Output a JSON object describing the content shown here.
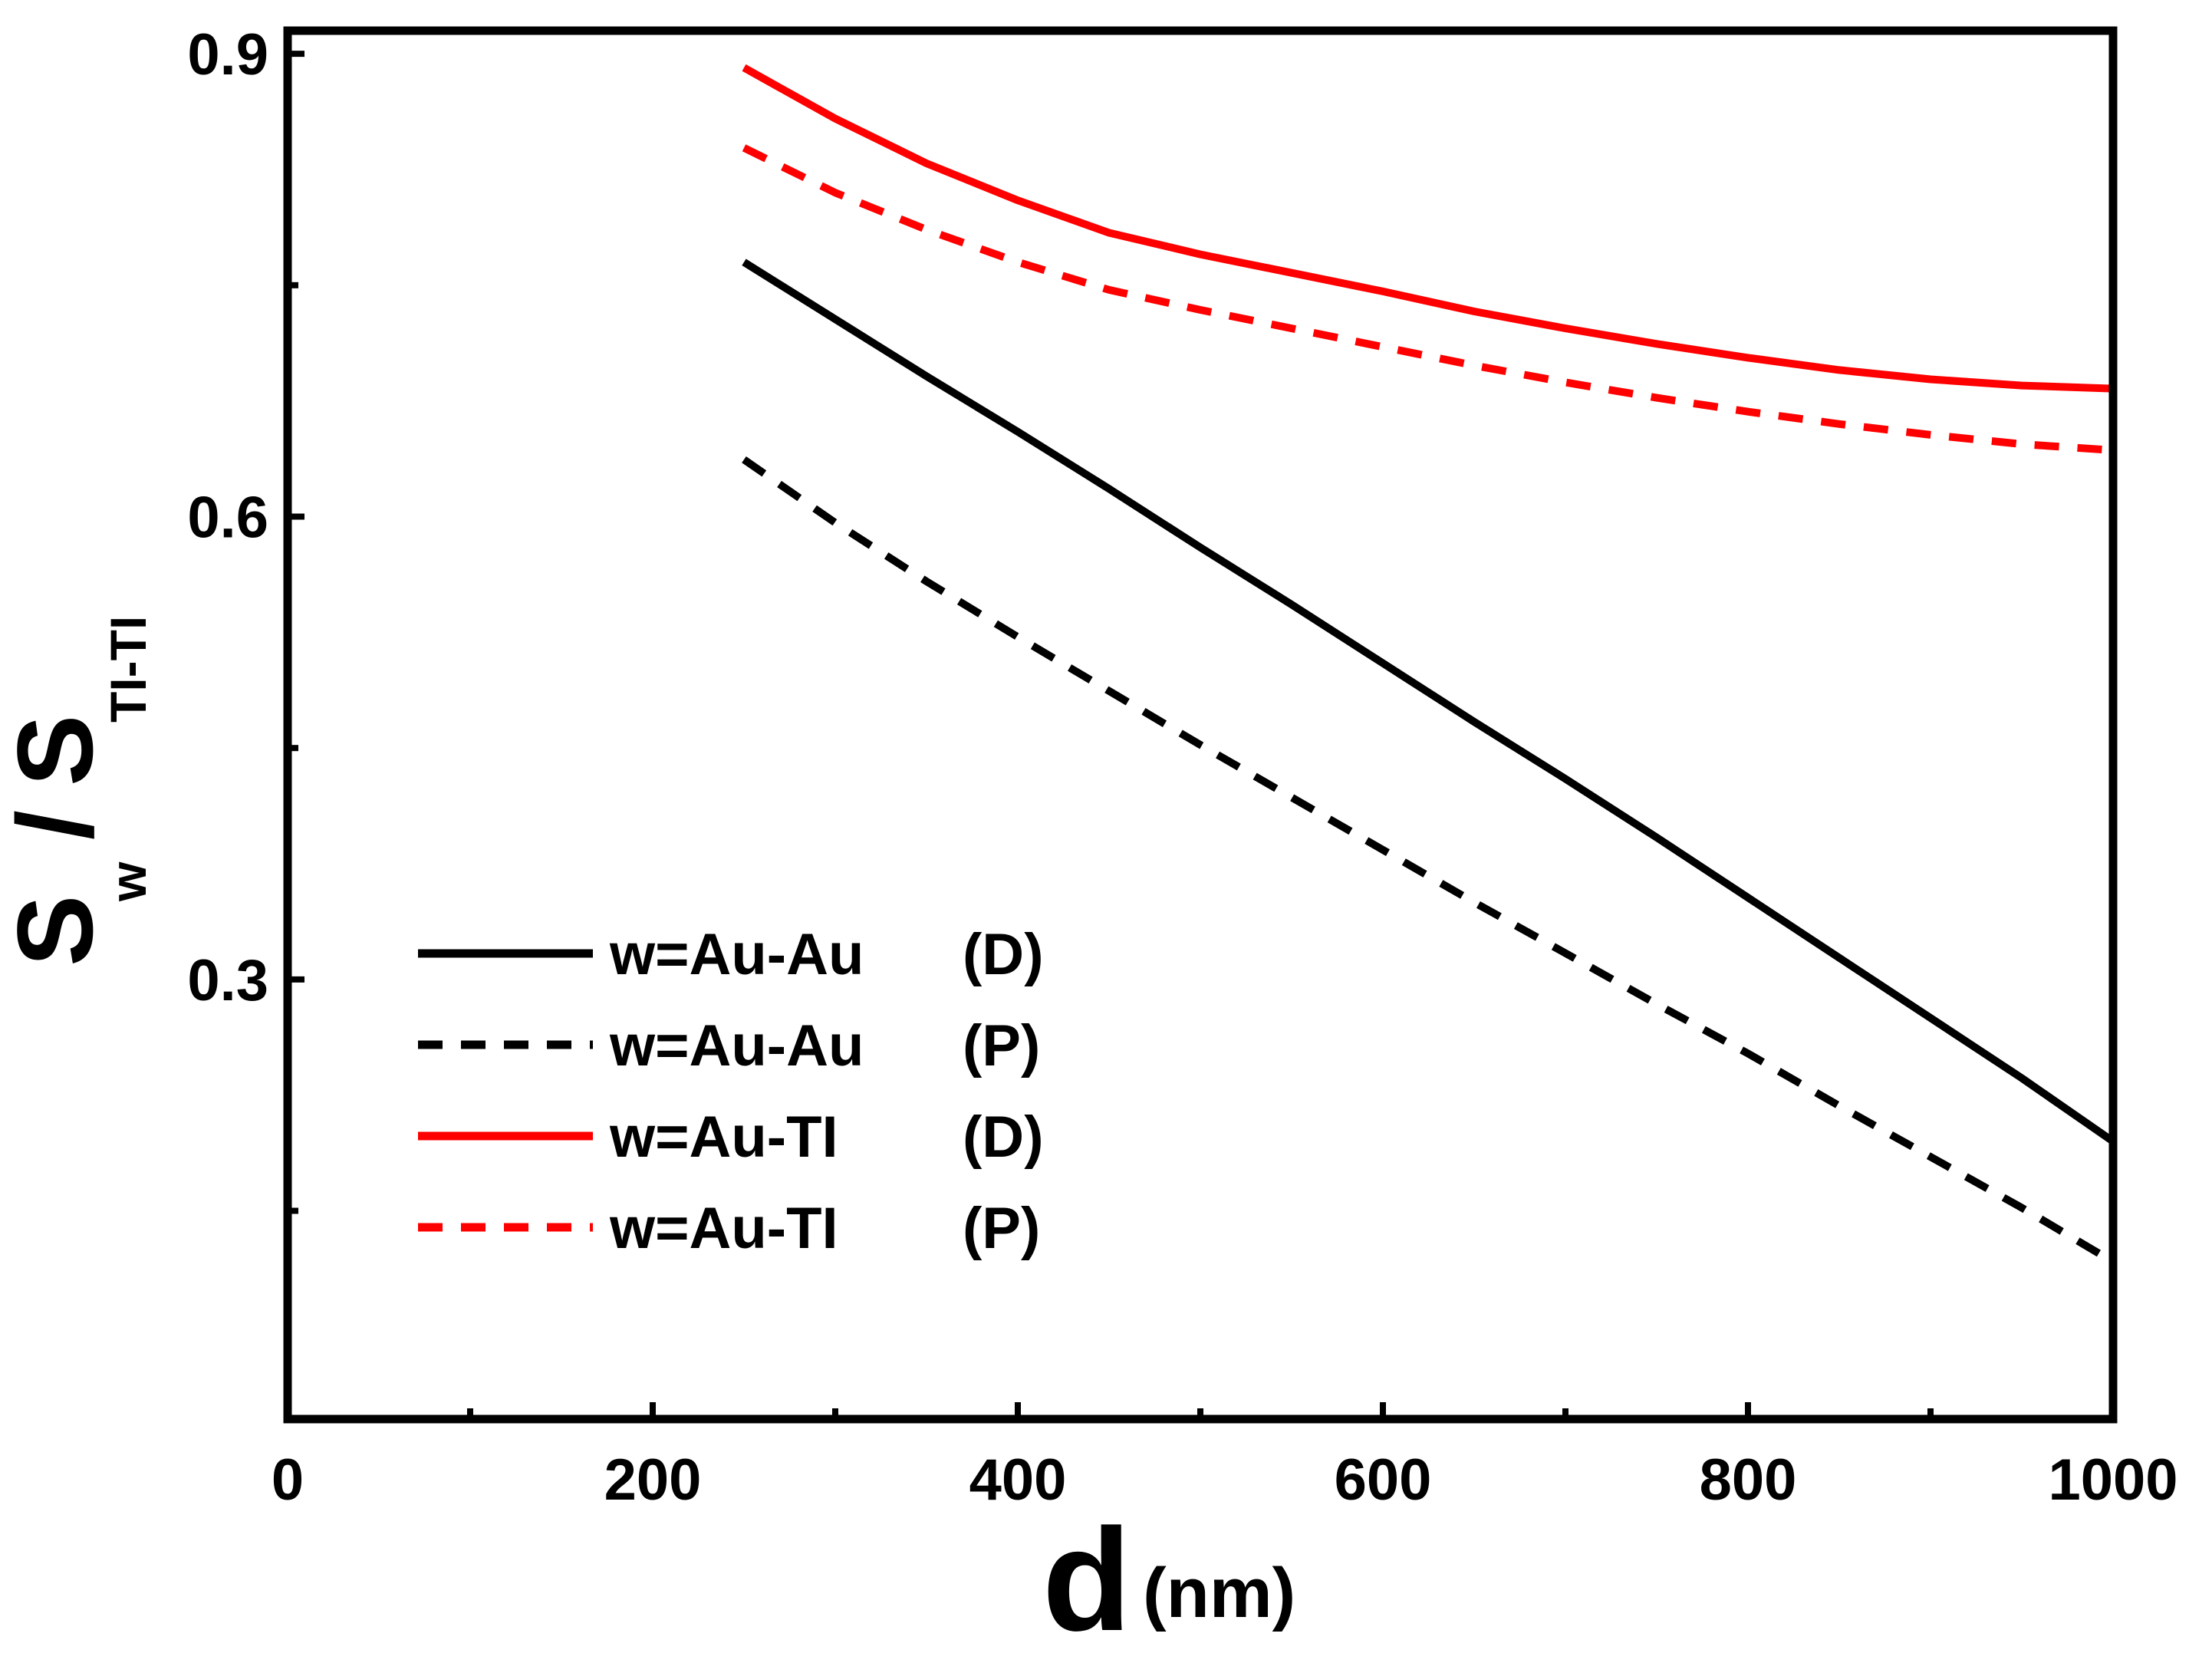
{
  "chart_data": {
    "type": "line",
    "title": "",
    "xlabel_main": "d",
    "xlabel_unit": "(nm)",
    "ylabel": {
      "s1": "S",
      "sub1": "w",
      "slash": "/",
      "s2": "S",
      "sub2": "TI-TI"
    },
    "xlim": [
      0,
      1000
    ],
    "ylim": [
      0.015,
      0.915
    ],
    "x_ticks": [
      0,
      200,
      400,
      600,
      800,
      1000
    ],
    "x_tick_labels": [
      "0",
      "200",
      "400",
      "600",
      "800",
      "1000"
    ],
    "x_minor_ticks": [
      100,
      300,
      500,
      700,
      900
    ],
    "y_ticks": [
      0.3,
      0.6,
      0.9
    ],
    "y_tick_labels": [
      "0.3",
      "0.6",
      "0.9"
    ],
    "y_minor_ticks": [
      0.15,
      0.45,
      0.75
    ],
    "legend_position": "bottom-left",
    "series": [
      {
        "name": "w=Au-Au  (D)",
        "label_w": "w=Au-Au",
        "label_mode": "(D)",
        "color": "#000000",
        "dash": "solid",
        "x": [
          250,
          300,
          350,
          400,
          450,
          500,
          550,
          600,
          650,
          700,
          750,
          800,
          850,
          900,
          950,
          1000
        ],
        "y": [
          0.765,
          0.728,
          0.691,
          0.655,
          0.618,
          0.58,
          0.543,
          0.505,
          0.467,
          0.43,
          0.392,
          0.353,
          0.314,
          0.275,
          0.236,
          0.195
        ]
      },
      {
        "name": "w=Au-Au  (P)",
        "label_w": "w=Au-Au",
        "label_mode": "(P)",
        "color": "#000000",
        "dash": "dashed",
        "x": [
          250,
          300,
          350,
          400,
          450,
          500,
          550,
          600,
          650,
          700,
          750,
          800,
          850,
          900,
          950,
          1000
        ],
        "y": [
          0.637,
          0.596,
          0.558,
          0.522,
          0.487,
          0.452,
          0.418,
          0.384,
          0.35,
          0.317,
          0.284,
          0.252,
          0.218,
          0.185,
          0.152,
          0.117
        ]
      },
      {
        "name": "w=Au-TI   (D)",
        "label_w": "w=Au-TI",
        "label_mode": "(D)",
        "color": "#ff0000",
        "dash": "solid",
        "x": [
          250,
          300,
          350,
          400,
          450,
          500,
          550,
          600,
          650,
          700,
          750,
          800,
          850,
          900,
          950,
          1000
        ],
        "y": [
          0.891,
          0.858,
          0.829,
          0.805,
          0.784,
          0.77,
          0.758,
          0.746,
          0.733,
          0.722,
          0.712,
          0.703,
          0.695,
          0.689,
          0.685,
          0.683
        ]
      },
      {
        "name": "w=Au-TI   (P)",
        "label_w": "w=Au-TI",
        "label_mode": "(P)",
        "color": "#ff0000",
        "dash": "dashed",
        "x": [
          250,
          300,
          350,
          400,
          450,
          500,
          550,
          600,
          650,
          700,
          750,
          800,
          850,
          900,
          950,
          1000
        ],
        "y": [
          0.839,
          0.81,
          0.786,
          0.765,
          0.747,
          0.734,
          0.722,
          0.71,
          0.698,
          0.687,
          0.677,
          0.668,
          0.66,
          0.653,
          0.647,
          0.643
        ]
      }
    ]
  }
}
